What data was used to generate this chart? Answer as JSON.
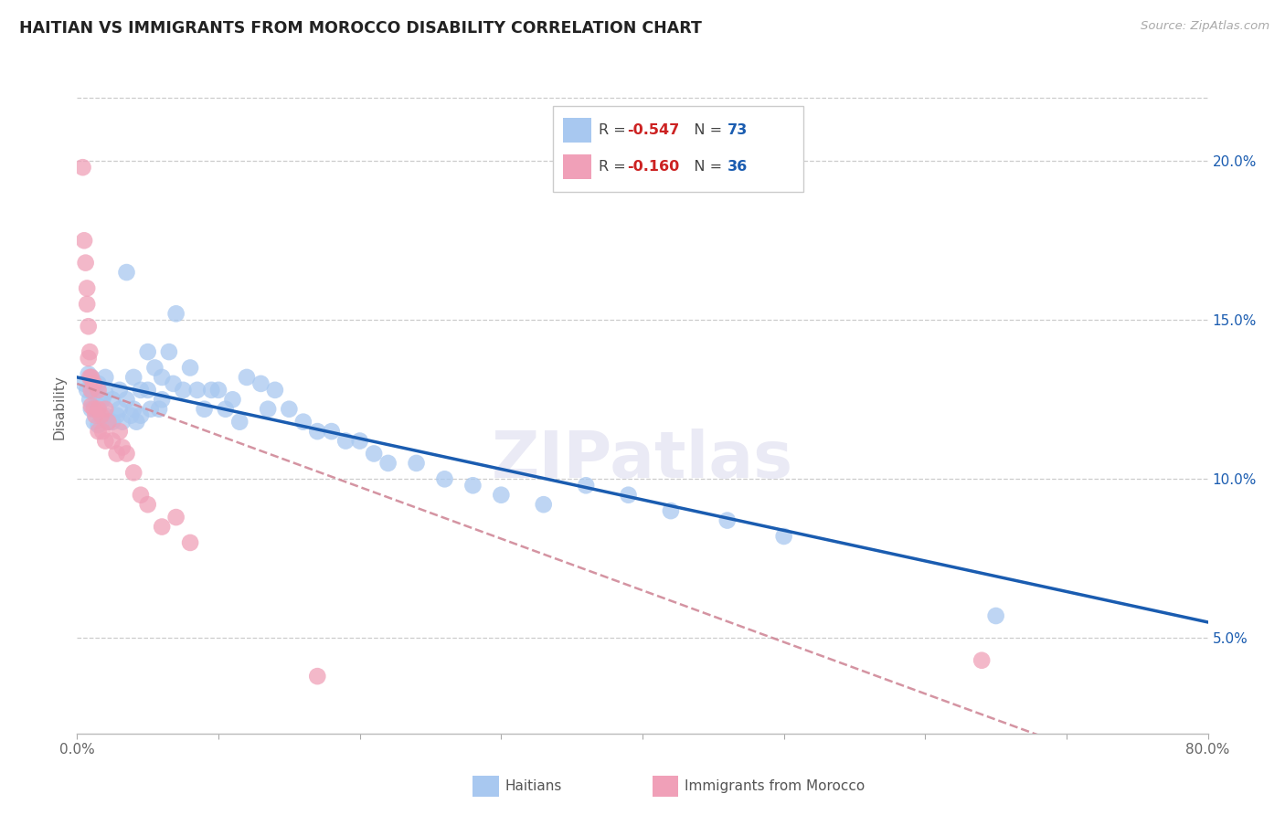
{
  "title": "HAITIAN VS IMMIGRANTS FROM MOROCCO DISABILITY CORRELATION CHART",
  "source": "Source: ZipAtlas.com",
  "ylabel": "Disability",
  "ytick_labels": [
    "5.0%",
    "10.0%",
    "15.0%",
    "20.0%"
  ],
  "ytick_values": [
    0.05,
    0.1,
    0.15,
    0.2
  ],
  "xlim": [
    0.0,
    0.8
  ],
  "ylim": [
    0.02,
    0.225
  ],
  "legend_label1": "Haitians",
  "legend_label2": "Immigrants from Morocco",
  "r1_val": "-0.547",
  "n1": "73",
  "r2_val": "-0.160",
  "n2": "36",
  "color_blue": "#A8C8F0",
  "color_pink": "#F0A0B8",
  "color_blue_line": "#1A5CB0",
  "color_pink_dashed": "#D08898",
  "background_color": "#FFFFFF",
  "watermark": "ZIPatlas",
  "haitians_x": [
    0.005,
    0.007,
    0.008,
    0.009,
    0.01,
    0.01,
    0.01,
    0.012,
    0.012,
    0.015,
    0.015,
    0.015,
    0.018,
    0.02,
    0.02,
    0.02,
    0.022,
    0.025,
    0.025,
    0.028,
    0.03,
    0.03,
    0.032,
    0.035,
    0.035,
    0.038,
    0.04,
    0.04,
    0.042,
    0.045,
    0.045,
    0.05,
    0.05,
    0.052,
    0.055,
    0.058,
    0.06,
    0.06,
    0.065,
    0.068,
    0.07,
    0.075,
    0.08,
    0.085,
    0.09,
    0.095,
    0.1,
    0.105,
    0.11,
    0.115,
    0.12,
    0.13,
    0.135,
    0.14,
    0.15,
    0.16,
    0.17,
    0.18,
    0.19,
    0.2,
    0.21,
    0.22,
    0.24,
    0.26,
    0.28,
    0.3,
    0.33,
    0.36,
    0.39,
    0.42,
    0.46,
    0.5,
    0.65
  ],
  "haitians_y": [
    0.13,
    0.128,
    0.133,
    0.125,
    0.132,
    0.128,
    0.122,
    0.127,
    0.118,
    0.13,
    0.123,
    0.117,
    0.125,
    0.132,
    0.127,
    0.12,
    0.118,
    0.125,
    0.118,
    0.12,
    0.128,
    0.122,
    0.118,
    0.165,
    0.125,
    0.12,
    0.132,
    0.122,
    0.118,
    0.128,
    0.12,
    0.14,
    0.128,
    0.122,
    0.135,
    0.122,
    0.132,
    0.125,
    0.14,
    0.13,
    0.152,
    0.128,
    0.135,
    0.128,
    0.122,
    0.128,
    0.128,
    0.122,
    0.125,
    0.118,
    0.132,
    0.13,
    0.122,
    0.128,
    0.122,
    0.118,
    0.115,
    0.115,
    0.112,
    0.112,
    0.108,
    0.105,
    0.105,
    0.1,
    0.098,
    0.095,
    0.092,
    0.098,
    0.095,
    0.09,
    0.087,
    0.082,
    0.057
  ],
  "morocco_x": [
    0.004,
    0.005,
    0.006,
    0.007,
    0.007,
    0.008,
    0.008,
    0.009,
    0.009,
    0.01,
    0.01,
    0.01,
    0.012,
    0.012,
    0.013,
    0.015,
    0.015,
    0.015,
    0.017,
    0.018,
    0.02,
    0.02,
    0.022,
    0.025,
    0.028,
    0.03,
    0.032,
    0.035,
    0.04,
    0.045,
    0.05,
    0.06,
    0.07,
    0.08,
    0.64,
    0.17
  ],
  "morocco_y": [
    0.198,
    0.175,
    0.168,
    0.155,
    0.16,
    0.148,
    0.138,
    0.132,
    0.14,
    0.132,
    0.128,
    0.123,
    0.13,
    0.122,
    0.12,
    0.128,
    0.122,
    0.115,
    0.12,
    0.115,
    0.122,
    0.112,
    0.118,
    0.112,
    0.108,
    0.115,
    0.11,
    0.108,
    0.102,
    0.095,
    0.092,
    0.085,
    0.088,
    0.08,
    0.043,
    0.038
  ]
}
